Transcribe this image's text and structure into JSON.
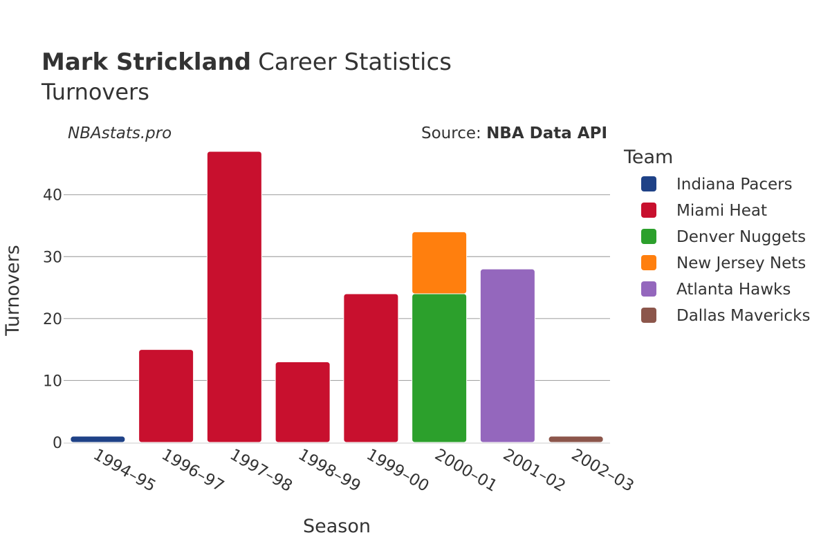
{
  "header": {
    "title_name": "Mark Strickland",
    "title_rest": "Career Statistics",
    "subtitle": "Turnovers",
    "watermark": "NBAstats.pro",
    "source_prefix": "Source: ",
    "source_name": "NBA Data API"
  },
  "chart_data": {
    "type": "bar",
    "stacked": true,
    "xlabel": "Season",
    "ylabel": "Turnovers",
    "categories": [
      "1994–95",
      "1996–97",
      "1997–98",
      "1998–99",
      "1999–00",
      "2000–01",
      "2001–02",
      "2002–03"
    ],
    "ylim": [
      0,
      48
    ],
    "yticks": [
      0,
      10,
      20,
      30,
      40
    ],
    "grid": true,
    "legend_title": "Team",
    "legend_position": "right",
    "series": [
      {
        "name": "Indiana Pacers",
        "color": "#1f4287",
        "values": [
          1,
          0,
          0,
          0,
          0,
          0,
          0,
          0
        ]
      },
      {
        "name": "Miami Heat",
        "color": "#c8102e",
        "values": [
          0,
          15,
          47,
          13,
          24,
          0,
          0,
          0
        ]
      },
      {
        "name": "Denver Nuggets",
        "color": "#2ca02c",
        "values": [
          0,
          0,
          0,
          0,
          0,
          24,
          0,
          0
        ]
      },
      {
        "name": "New Jersey Nets",
        "color": "#ff7f0e",
        "values": [
          0,
          0,
          0,
          0,
          0,
          10,
          0,
          0
        ]
      },
      {
        "name": "Atlanta Hawks",
        "color": "#9467bd",
        "values": [
          0,
          0,
          0,
          0,
          0,
          0,
          28,
          0
        ]
      },
      {
        "name": "Dallas Mavericks",
        "color": "#8c564b",
        "values": [
          0,
          0,
          0,
          0,
          0,
          0,
          0,
          1
        ]
      }
    ]
  }
}
